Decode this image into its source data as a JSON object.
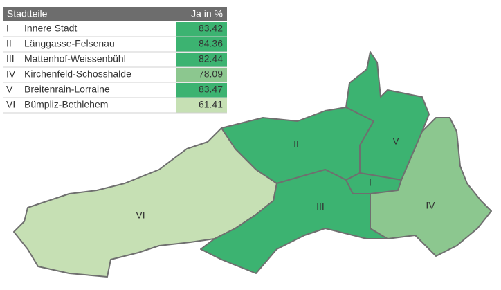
{
  "header": {
    "district": "Stadtteile",
    "value": "Ja in %"
  },
  "rows": [
    {
      "numeral": "I",
      "name": "Innere Stadt",
      "value": 83.42,
      "color": "#3cb371"
    },
    {
      "numeral": "II",
      "name": "Länggasse-Felsenau",
      "value": 84.36,
      "color": "#3cb371"
    },
    {
      "numeral": "III",
      "name": "Mattenhof-Weissenbühl",
      "value": 82.44,
      "color": "#3cb371"
    },
    {
      "numeral": "IV",
      "name": "Kirchenfeld-Schosshalde",
      "value": 78.09,
      "color": "#8cc78f"
    },
    {
      "numeral": "V",
      "name": "Breitenrain-Lorraine",
      "value": 83.47,
      "color": "#3cb371"
    },
    {
      "numeral": "VI",
      "name": "Bümpliz-Bethlehem",
      "value": 61.41,
      "color": "#c6e0b4"
    }
  ]
}
